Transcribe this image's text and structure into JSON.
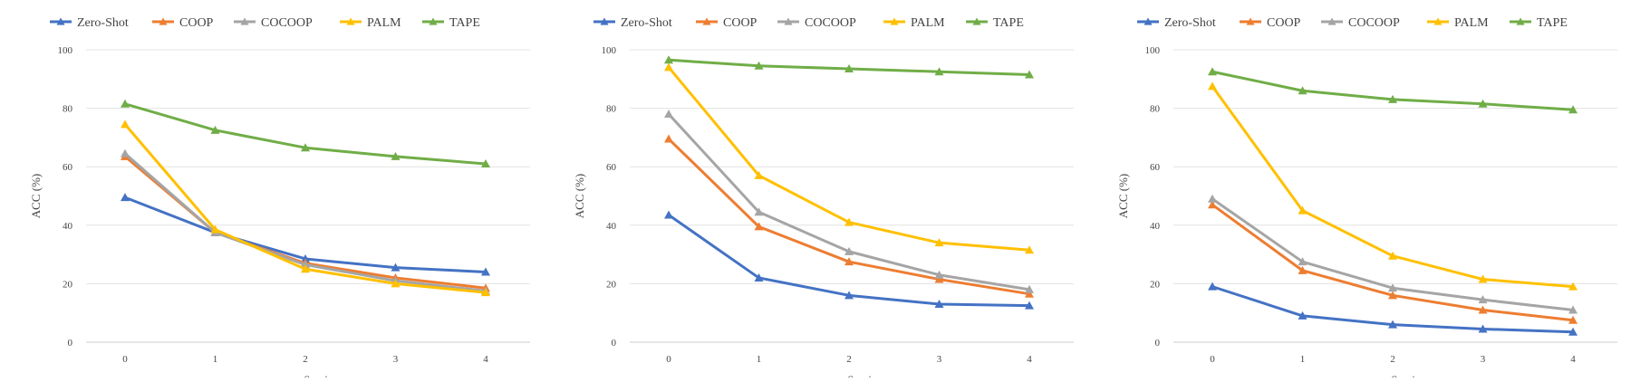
{
  "colors": {
    "Zero-Shot": "#4472c4",
    "COOP": "#ed7d31",
    "COCOOP": "#a5a5a5",
    "PALM": "#ffc000",
    "TAPE": "#70ad47",
    "grid": "#e3e3e3",
    "axis": "#cccccc",
    "text": "#444444"
  },
  "chart_data": [
    {
      "type": "line",
      "title": "",
      "xlabel": "Session",
      "ylabel": "ACC (%)",
      "categories": [
        "0",
        "1",
        "2",
        "3",
        "4"
      ],
      "ylim": [
        0,
        100
      ],
      "yticks": [
        "0",
        "20",
        "40",
        "60",
        "80",
        "100"
      ],
      "grid": true,
      "legend": "top",
      "series": [
        {
          "name": "Zero-Shot",
          "values": [
            49.5,
            37.5,
            28.5,
            25.5,
            24
          ]
        },
        {
          "name": "COOP",
          "values": [
            63.5,
            37.5,
            27,
            22,
            18.5
          ]
        },
        {
          "name": "COCOOP",
          "values": [
            64.5,
            37.5,
            26.5,
            21,
            17.5
          ]
        },
        {
          "name": "PALM",
          "values": [
            74.5,
            38.5,
            25,
            20,
            17
          ]
        },
        {
          "name": "TAPE",
          "values": [
            81.5,
            72.5,
            66.5,
            63.5,
            61
          ]
        }
      ]
    },
    {
      "type": "line",
      "title": "",
      "xlabel": "Session",
      "ylabel": "ACC (%)",
      "categories": [
        "0",
        "1",
        "2",
        "3",
        "4"
      ],
      "ylim": [
        0,
        100
      ],
      "yticks": [
        "0",
        "20",
        "40",
        "60",
        "80",
        "100"
      ],
      "grid": true,
      "legend": "top",
      "series": [
        {
          "name": "Zero-Shot",
          "values": [
            43.5,
            22,
            16,
            13,
            12.5
          ]
        },
        {
          "name": "COOP",
          "values": [
            69.5,
            39.5,
            27.5,
            21.5,
            16.5
          ]
        },
        {
          "name": "COCOOP",
          "values": [
            78,
            44.5,
            31,
            23,
            18
          ]
        },
        {
          "name": "PALM",
          "values": [
            94,
            57,
            41,
            34,
            31.5
          ]
        },
        {
          "name": "TAPE",
          "values": [
            96.5,
            94.5,
            93.5,
            92.5,
            91.5
          ]
        }
      ]
    },
    {
      "type": "line",
      "title": "",
      "xlabel": "Session",
      "ylabel": "ACC (%)",
      "categories": [
        "0",
        "1",
        "2",
        "3",
        "4"
      ],
      "ylim": [
        0,
        100
      ],
      "yticks": [
        "0",
        "20",
        "40",
        "60",
        "80",
        "100"
      ],
      "grid": true,
      "legend": "top",
      "series": [
        {
          "name": "Zero-Shot",
          "values": [
            19,
            9,
            6,
            4.5,
            3.5
          ]
        },
        {
          "name": "COOP",
          "values": [
            47,
            24.5,
            16,
            11,
            7.5
          ]
        },
        {
          "name": "COCOOP",
          "values": [
            49,
            27.5,
            18.5,
            14.5,
            11
          ]
        },
        {
          "name": "PALM",
          "values": [
            87.5,
            45,
            29.5,
            21.5,
            19
          ]
        },
        {
          "name": "TAPE",
          "values": [
            92.5,
            86,
            83,
            81.5,
            79.5
          ]
        }
      ]
    }
  ]
}
